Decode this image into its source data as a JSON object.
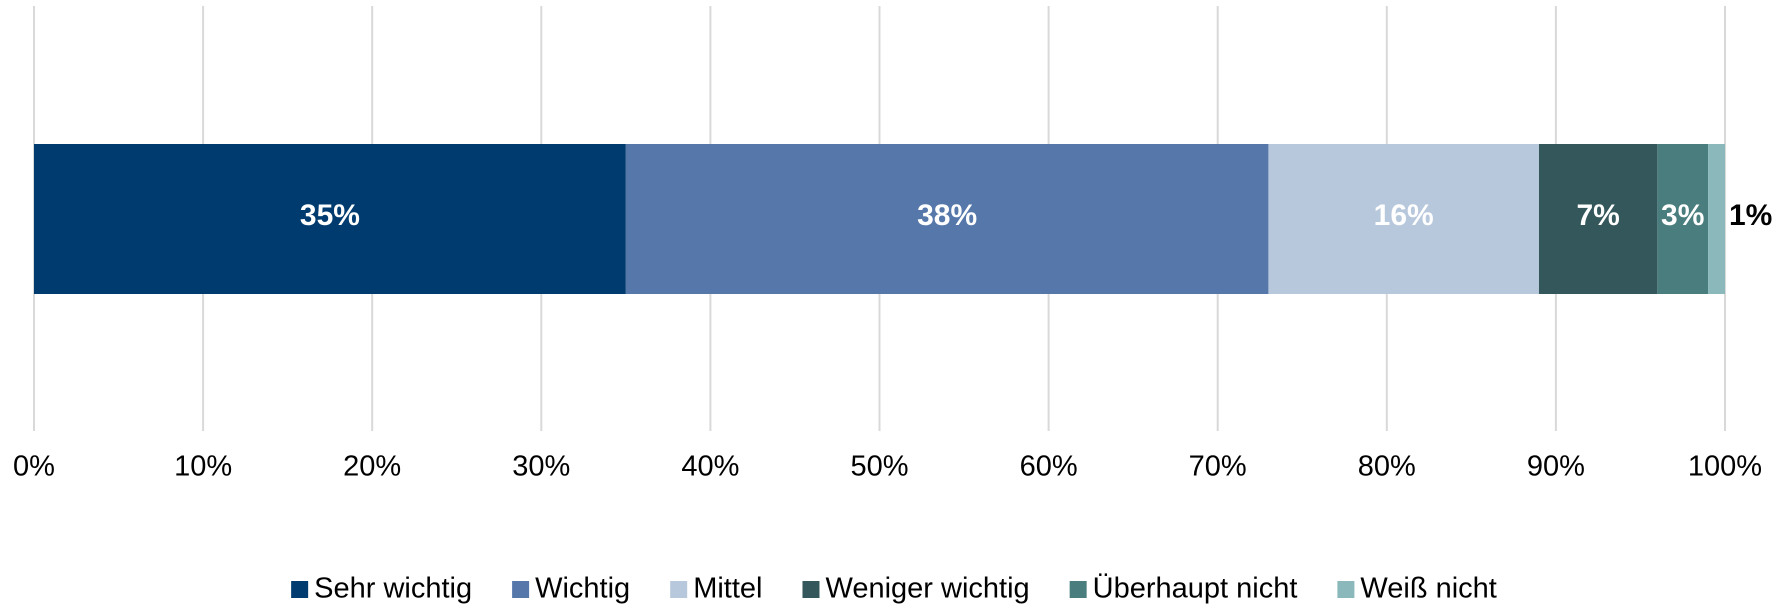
{
  "chart_data": {
    "type": "stacked_bar_horizontal",
    "categories": [
      null
    ],
    "series": [
      {
        "name": "Sehr wichtig",
        "color": "#003b6f",
        "values": [
          35
        ],
        "value_labels": [
          "35%"
        ]
      },
      {
        "name": "Wichtig",
        "color": "#5577aa",
        "values": [
          38
        ],
        "value_labels": [
          "38%"
        ]
      },
      {
        "name": "Mittel",
        "color": "#b8c8dc",
        "values": [
          16
        ],
        "value_labels": [
          "16%"
        ]
      },
      {
        "name": "Weniger wichtig",
        "color": "#33575a",
        "values": [
          7
        ],
        "value_labels": [
          "7%"
        ]
      },
      {
        "name": "Überhaupt nicht",
        "color": "#4a7e7e",
        "values": [
          3
        ],
        "value_labels": [
          "3%"
        ]
      },
      {
        "name": "Weiß nicht",
        "color": "#8bb8bb",
        "values": [
          1
        ],
        "value_labels": [
          "1%"
        ]
      }
    ],
    "xlim": [
      0,
      100
    ],
    "xticks": [
      {
        "value": 0,
        "label": "0%"
      },
      {
        "value": 10,
        "label": "10%"
      },
      {
        "value": 20,
        "label": "20%"
      },
      {
        "value": 30,
        "label": "30%"
      },
      {
        "value": 40,
        "label": "40%"
      },
      {
        "value": 50,
        "label": "50%"
      },
      {
        "value": 60,
        "label": "60%"
      },
      {
        "value": 70,
        "label": "70%"
      },
      {
        "value": 80,
        "label": "80%"
      },
      {
        "value": 90,
        "label": "90%"
      },
      {
        "value": 100,
        "label": "100%"
      }
    ],
    "grid": true,
    "legend": "bottom"
  }
}
